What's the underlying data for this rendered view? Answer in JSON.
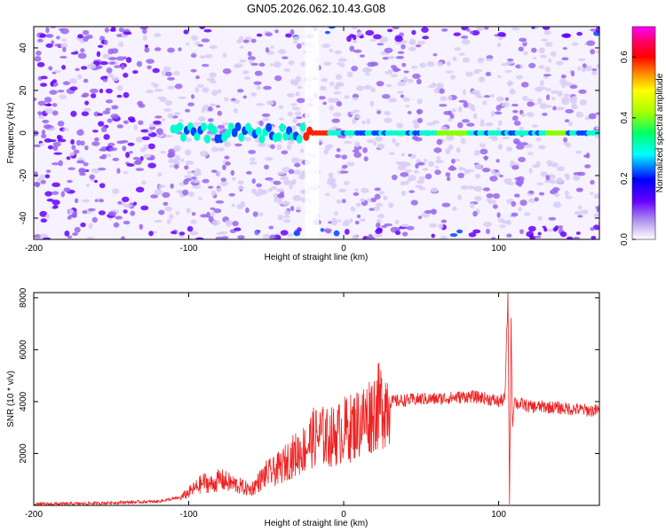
{
  "title": "GN05.2026.062.10.43.G08",
  "chart_data": [
    {
      "type": "heatmap",
      "title": "GN05.2026.062.10.43.G08",
      "xlabel": "Height of straight line (km)",
      "ylabel": "Frequency (Hz)",
      "xlim": [
        -200,
        165
      ],
      "ylim": [
        -50,
        50
      ],
      "xticks": [
        -200,
        -100,
        0,
        100
      ],
      "yticks": [
        -40,
        -20,
        0,
        20,
        40
      ],
      "colorbar": {
        "label": "Normalized spectral amplitude",
        "range": [
          0.0,
          0.7
        ],
        "ticks": [
          "0.0",
          "0.2",
          "0.4",
          "0.6"
        ],
        "colors": [
          "#ffffff",
          "#b090f0",
          "#6600ff",
          "#0000ff",
          "#00ffff",
          "#00ff66",
          "#aaff00",
          "#ffff00",
          "#ff8800",
          "#ff0000",
          "#ff0066",
          "#ff00ff"
        ]
      },
      "features": [
        {
          "description_source": "visible",
          "x": [
            -110,
            165
          ],
          "frequency": 0,
          "amplitude_peak": 0.6
        },
        {
          "x": [
            -200,
            -120
          ],
          "amplitude": 0.1
        }
      ]
    },
    {
      "type": "line",
      "xlabel": "Height of straight line (km)",
      "ylabel": "SNR (10 * v/v)",
      "xlim": [
        -200,
        165
      ],
      "ylim": [
        0,
        8200
      ],
      "xticks": [
        -200,
        -100,
        0,
        100
      ],
      "yticks": [
        2000,
        4000,
        6000,
        8000
      ],
      "color": "#ee2222",
      "series": [
        {
          "x": [
            -200,
            -180,
            -160,
            -140,
            -120,
            -105,
            -100,
            -95,
            -90,
            -85,
            -80,
            -75,
            -70,
            -65,
            -60,
            -55,
            -50,
            -45,
            -40,
            -35,
            -30,
            -25,
            -20,
            -15,
            -10,
            -5,
            0,
            5,
            10,
            15,
            20,
            25,
            30,
            40,
            50,
            60,
            70,
            80,
            90,
            100,
            104,
            106,
            107,
            108,
            109,
            110,
            112,
            115,
            120,
            130,
            140,
            150,
            160,
            165
          ],
          "values": [
            50,
            60,
            80,
            120,
            150,
            300,
            500,
            700,
            900,
            800,
            1000,
            900,
            800,
            700,
            600,
            900,
            1200,
            1300,
            1500,
            1800,
            2000,
            2200,
            2600,
            2700,
            2600,
            2700,
            2900,
            3000,
            3200,
            3400,
            3700,
            3900,
            4000,
            4050,
            4100,
            4100,
            4150,
            4200,
            4150,
            4000,
            4100,
            8100,
            200,
            7000,
            3000,
            4100,
            3900,
            3900,
            3800,
            3800,
            3750,
            3700,
            3650,
            3650
          ]
        }
      ]
    }
  ]
}
